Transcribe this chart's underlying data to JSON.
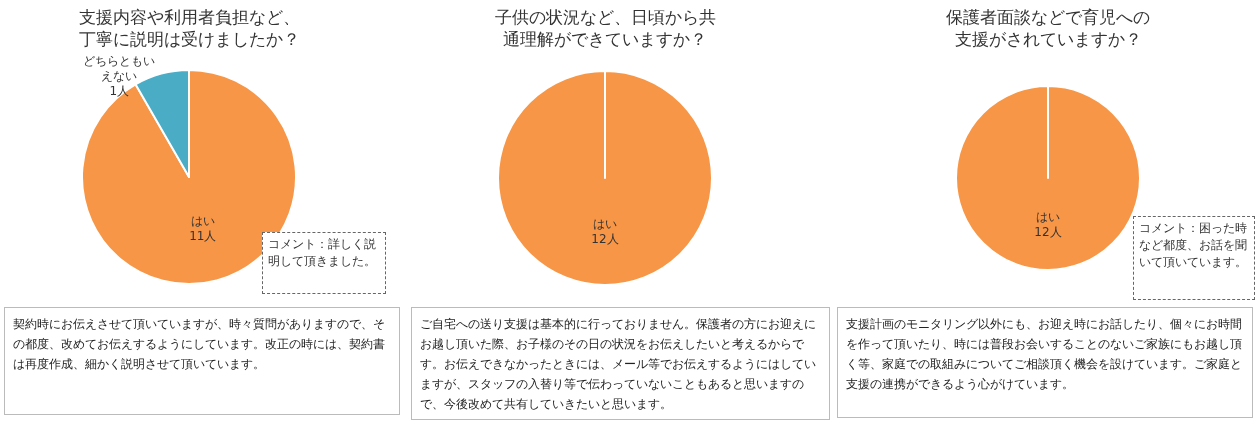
{
  "chart_data": [
    {
      "type": "pie",
      "title": "支援内容や利用者負担など、丁寧に説明は受けましたか？",
      "categories": [
        "はい",
        "どちらともいえない"
      ],
      "values": [
        11,
        1
      ],
      "colors": [
        "#f79646",
        "#4bacc6"
      ],
      "value_labels": [
        "11人",
        "1人"
      ],
      "annotations": [
        "コメント：詳しく説明して頂きました。",
        "契約時にお伝えさせて頂いていますが、時々質問がありますので、その都度、改めてお伝えするようにしています。改正の時には、契約書は再度作成、細かく説明させて頂いています。"
      ]
    },
    {
      "type": "pie",
      "title": "子供の状況など、日頃から共通理解ができていますか？",
      "categories": [
        "はい"
      ],
      "values": [
        12
      ],
      "colors": [
        "#f79646"
      ],
      "value_labels": [
        "12人"
      ],
      "annotations": [
        "ご自宅への送り支援は基本的に行っておりません。保護者の方にお迎えにお越し頂いた際、お子様のその日の状況をお伝えしたいと考えるからです。お伝えできなかったときには、メール等でお伝えするようにはしていますが、スタッフの入替り等で伝わっていないこともあると思いますので、今後改めて共有していきたいと思います。"
      ]
    },
    {
      "type": "pie",
      "title": "保護者面談などで育児への支援がされていますか？",
      "categories": [
        "はい"
      ],
      "values": [
        12
      ],
      "colors": [
        "#f79646"
      ],
      "value_labels": [
        "12人"
      ],
      "annotations": [
        "コメント：困った時など都度、お話を聞いて頂いています。",
        "支援計画のモニタリング以外にも、お迎え時にお話したり、個々にお時間を作って頂いたり、時には普段お会いすることのないご家族にもお越し頂く等、家庭での取組みについてご相談頂く機会を設けています。ご家庭と支援の連携ができるよう心がけています。"
      ]
    }
  ]
}
